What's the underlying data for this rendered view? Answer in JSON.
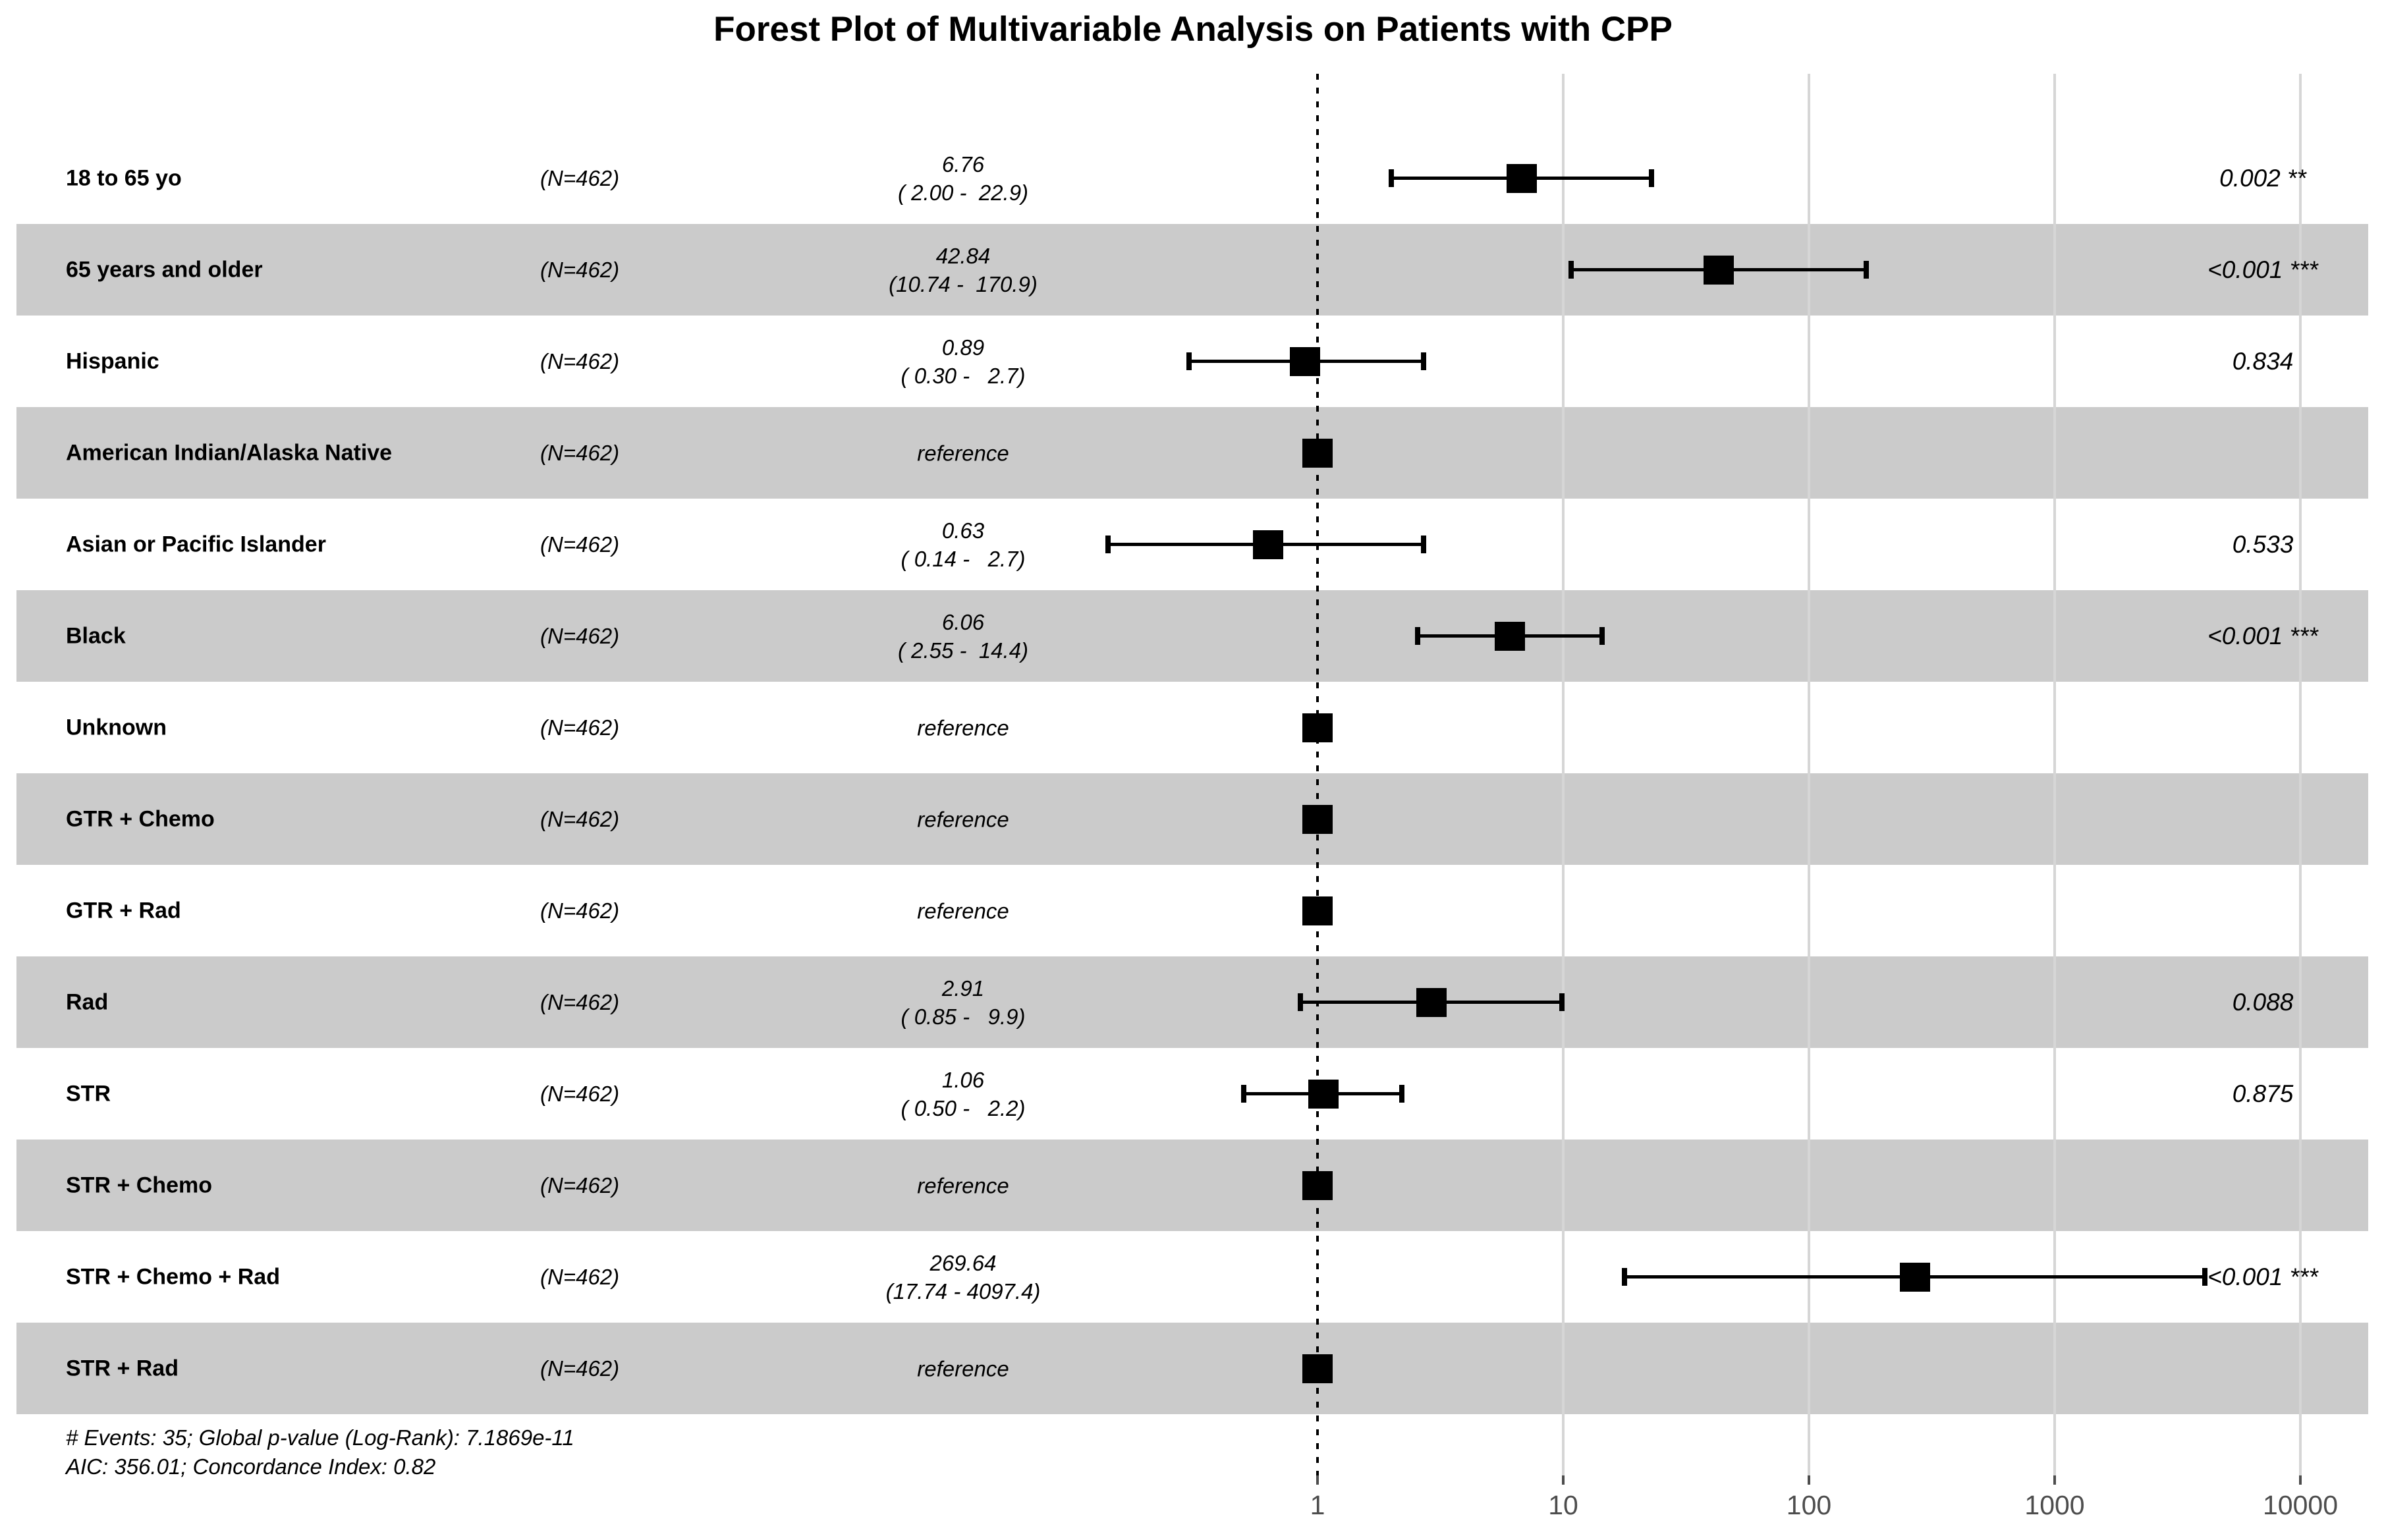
{
  "chart_data": {
    "type": "forest",
    "title": "Forest Plot of Multivariable Analysis on Patients with CPP",
    "x_axis": {
      "scale": "log10",
      "ticks": [
        1,
        10,
        100,
        1000,
        10000
      ],
      "tick_labels": [
        "1",
        "10",
        "100",
        "1000",
        "10000"
      ],
      "gridlines": [
        10,
        100,
        1000,
        10000
      ],
      "reference_line": 1,
      "xlim": [
        0.1,
        10000
      ]
    },
    "rows": [
      {
        "label": "18 to 65 yo",
        "n": "(N=462)",
        "estimate": 6.76,
        "ci_low": 2.0,
        "ci_high": 22.9,
        "estimate_text": "6.76",
        "ci_text": "( 2.00 -  22.9)",
        "p_text": "0.002 **",
        "shaded": false
      },
      {
        "label": "65 years and older",
        "n": "(N=462)",
        "estimate": 42.84,
        "ci_low": 10.74,
        "ci_high": 170.9,
        "estimate_text": "42.84",
        "ci_text": "(10.74 -  170.9)",
        "p_text": "<0.001 ***",
        "shaded": true
      },
      {
        "label": "Hispanic",
        "n": "(N=462)",
        "estimate": 0.89,
        "ci_low": 0.3,
        "ci_high": 2.7,
        "estimate_text": "0.89",
        "ci_text": "( 0.30 -   2.7)",
        "p_text": "0.834",
        "shaded": false
      },
      {
        "label": "American Indian/Alaska Native",
        "n": "(N=462)",
        "estimate": 1,
        "ci_low": null,
        "ci_high": null,
        "estimate_text": "reference",
        "ci_text": "",
        "p_text": "",
        "shaded": true
      },
      {
        "label": "Asian or Pacific Islander",
        "n": "(N=462)",
        "estimate": 0.63,
        "ci_low": 0.14,
        "ci_high": 2.7,
        "estimate_text": "0.63",
        "ci_text": "( 0.14 -   2.7)",
        "p_text": "0.533",
        "shaded": false
      },
      {
        "label": "Black",
        "n": "(N=462)",
        "estimate": 6.06,
        "ci_low": 2.55,
        "ci_high": 14.4,
        "estimate_text": "6.06",
        "ci_text": "( 2.55 -  14.4)",
        "p_text": "<0.001 ***",
        "shaded": true
      },
      {
        "label": "Unknown",
        "n": "(N=462)",
        "estimate": 1,
        "ci_low": null,
        "ci_high": null,
        "estimate_text": "reference",
        "ci_text": "",
        "p_text": "",
        "shaded": false
      },
      {
        "label": "GTR + Chemo",
        "n": "(N=462)",
        "estimate": 1,
        "ci_low": null,
        "ci_high": null,
        "estimate_text": "reference",
        "ci_text": "",
        "p_text": "",
        "shaded": true
      },
      {
        "label": "GTR + Rad",
        "n": "(N=462)",
        "estimate": 1,
        "ci_low": null,
        "ci_high": null,
        "estimate_text": "reference",
        "ci_text": "",
        "p_text": "",
        "shaded": false
      },
      {
        "label": "Rad",
        "n": "(N=462)",
        "estimate": 2.91,
        "ci_low": 0.85,
        "ci_high": 9.9,
        "estimate_text": "2.91",
        "ci_text": "( 0.85 -   9.9)",
        "p_text": "0.088",
        "shaded": true
      },
      {
        "label": "STR",
        "n": "(N=462)",
        "estimate": 1.06,
        "ci_low": 0.5,
        "ci_high": 2.2,
        "estimate_text": "1.06",
        "ci_text": "( 0.50 -   2.2)",
        "p_text": "0.875",
        "shaded": false
      },
      {
        "label": "STR + Chemo",
        "n": "(N=462)",
        "estimate": 1,
        "ci_low": null,
        "ci_high": null,
        "estimate_text": "reference",
        "ci_text": "",
        "p_text": "",
        "shaded": true
      },
      {
        "label": "STR + Chemo + Rad",
        "n": "(N=462)",
        "estimate": 269.64,
        "ci_low": 17.74,
        "ci_high": 4097.4,
        "estimate_text": "269.64",
        "ci_text": "(17.74 - 4097.4)",
        "p_text": "<0.001 ***",
        "shaded": false
      },
      {
        "label": "STR + Rad",
        "n": "(N=462)",
        "estimate": 1,
        "ci_low": null,
        "ci_high": null,
        "estimate_text": "reference",
        "ci_text": "",
        "p_text": "",
        "shaded": true
      }
    ],
    "footnotes": [
      "# Events: 35; Global p-value (Log-Rank): 7.1869e-11",
      "AIC: 356.01; Concordance Index: 0.82"
    ]
  },
  "colors": {
    "background": "#ffffff",
    "band": "#cbcbcb",
    "grid": "#d6d6d6",
    "reference_line": "#000000",
    "marker": "#000000",
    "axis_text": "#4d4d4d",
    "text": "#000000"
  }
}
